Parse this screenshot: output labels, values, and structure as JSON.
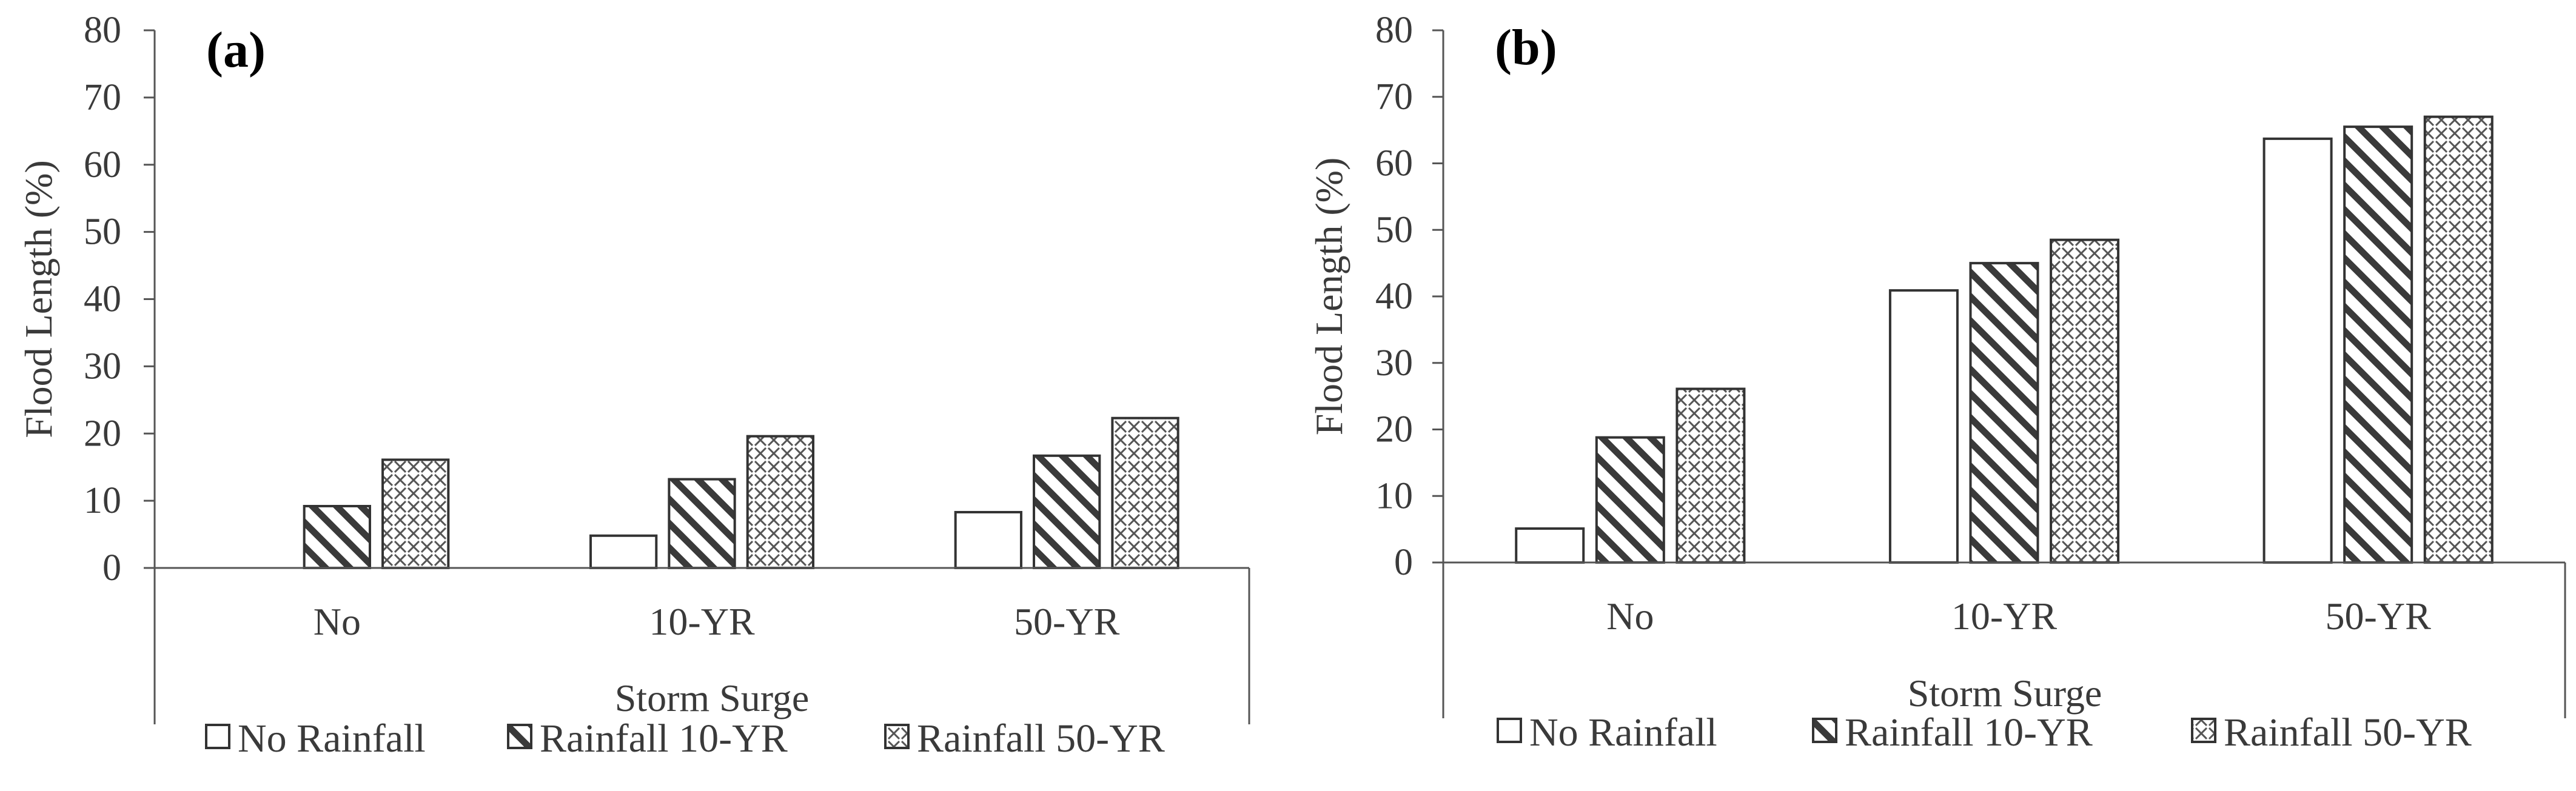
{
  "chart_data": [
    {
      "type": "bar",
      "panel_label": "(a)",
      "title": "",
      "xlabel": "Storm Surge",
      "ylabel": "Flood Length (%)",
      "ylim": [
        0,
        80
      ],
      "yticks": [
        "0",
        "10",
        "20",
        "30",
        "40",
        "50",
        "60",
        "70",
        "80"
      ],
      "categories": [
        "No",
        "10-YR",
        "50-YR"
      ],
      "series": [
        {
          "name": "No Rainfall",
          "pattern": "none",
          "values": [
            0,
            4.8,
            8.3
          ]
        },
        {
          "name": "Rainfall 10-YR",
          "pattern": "diagonal",
          "values": [
            9.2,
            13.2,
            16.7
          ]
        },
        {
          "name": "Rainfall 50-YR",
          "pattern": "crosshatch",
          "values": [
            16.1,
            19.6,
            22.3
          ]
        }
      ],
      "legend_position": "bottom"
    },
    {
      "type": "bar",
      "panel_label": "(b)",
      "title": "",
      "xlabel": "Storm Surge",
      "ylabel": "Flood Length (%)",
      "ylim": [
        0,
        80
      ],
      "yticks": [
        "0",
        "10",
        "20",
        "30",
        "40",
        "50",
        "60",
        "70",
        "80"
      ],
      "categories": [
        "No",
        "10-YR",
        "50-YR"
      ],
      "series": [
        {
          "name": "No Rainfall",
          "pattern": "none",
          "values": [
            5.1,
            40.9,
            63.7
          ]
        },
        {
          "name": "Rainfall 10-YR",
          "pattern": "diagonal",
          "values": [
            18.8,
            45.0,
            65.5
          ]
        },
        {
          "name": "Rainfall 50-YR",
          "pattern": "crosshatch",
          "values": [
            26.1,
            48.5,
            67.0
          ]
        }
      ],
      "legend_position": "bottom"
    }
  ],
  "colors": {
    "axis": "#555555",
    "bar_stroke": "#333333",
    "hatch": "#3a3a3a",
    "text": "#3a3a3a"
  }
}
